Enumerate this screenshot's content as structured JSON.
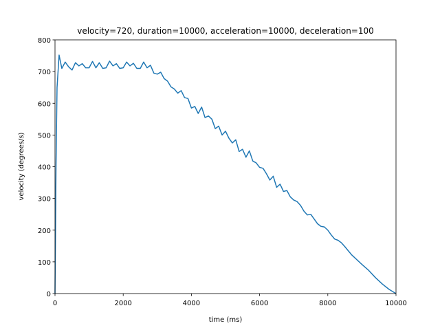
{
  "chart_data": {
    "type": "line",
    "title": "velocity=720, duration=10000, acceleration=10000, deceleration=100",
    "x_label": "time (ms)",
    "y_label": "velocity (degrees/s)",
    "x": [
      0,
      30,
      60,
      120,
      200,
      300,
      400,
      500,
      600,
      700,
      800,
      900,
      1000,
      1100,
      1200,
      1300,
      1400,
      1500,
      1600,
      1700,
      1800,
      1900,
      2000,
      2100,
      2200,
      2300,
      2400,
      2500,
      2600,
      2700,
      2800,
      2900,
      3000,
      3100,
      3200,
      3300,
      3400,
      3500,
      3600,
      3700,
      3800,
      3900,
      4000,
      4100,
      4200,
      4300,
      4400,
      4500,
      4600,
      4700,
      4800,
      4900,
      5000,
      5100,
      5200,
      5300,
      5400,
      5500,
      5600,
      5700,
      5800,
      5900,
      6000,
      6100,
      6200,
      6300,
      6400,
      6500,
      6600,
      6700,
      6800,
      6900,
      7000,
      7100,
      7200,
      7300,
      7400,
      7500,
      7600,
      7700,
      7800,
      7900,
      8000,
      8100,
      8200,
      8300,
      8400,
      8500,
      8600,
      8700,
      8800,
      8900,
      9000,
      9200,
      9400,
      9600,
      9800,
      10000
    ],
    "series": [
      {
        "name": "velocity",
        "color": "#1f77b4",
        "values": [
          0,
          400,
          650,
          752,
          710,
          730,
          715,
          705,
          728,
          718,
          725,
          712,
          712,
          732,
          712,
          728,
          710,
          712,
          733,
          718,
          725,
          710,
          712,
          730,
          718,
          726,
          710,
          710,
          730,
          712,
          720,
          695,
          692,
          698,
          678,
          670,
          652,
          645,
          632,
          640,
          618,
          615,
          585,
          590,
          568,
          588,
          555,
          560,
          550,
          520,
          528,
          500,
          512,
          490,
          475,
          485,
          448,
          455,
          430,
          450,
          418,
          412,
          398,
          395,
          378,
          358,
          370,
          335,
          345,
          322,
          325,
          305,
          295,
          290,
          278,
          260,
          248,
          250,
          235,
          220,
          212,
          210,
          200,
          185,
          172,
          168,
          160,
          148,
          135,
          122,
          112,
          102,
          92,
          73,
          50,
          30,
          13,
          0
        ]
      }
    ],
    "xlim": [
      0,
      10000
    ],
    "ylim": [
      0,
      800
    ],
    "xticks": [
      0,
      2000,
      4000,
      6000,
      8000,
      10000
    ],
    "yticks": [
      0,
      100,
      200,
      300,
      400,
      500,
      600,
      700,
      800
    ]
  }
}
